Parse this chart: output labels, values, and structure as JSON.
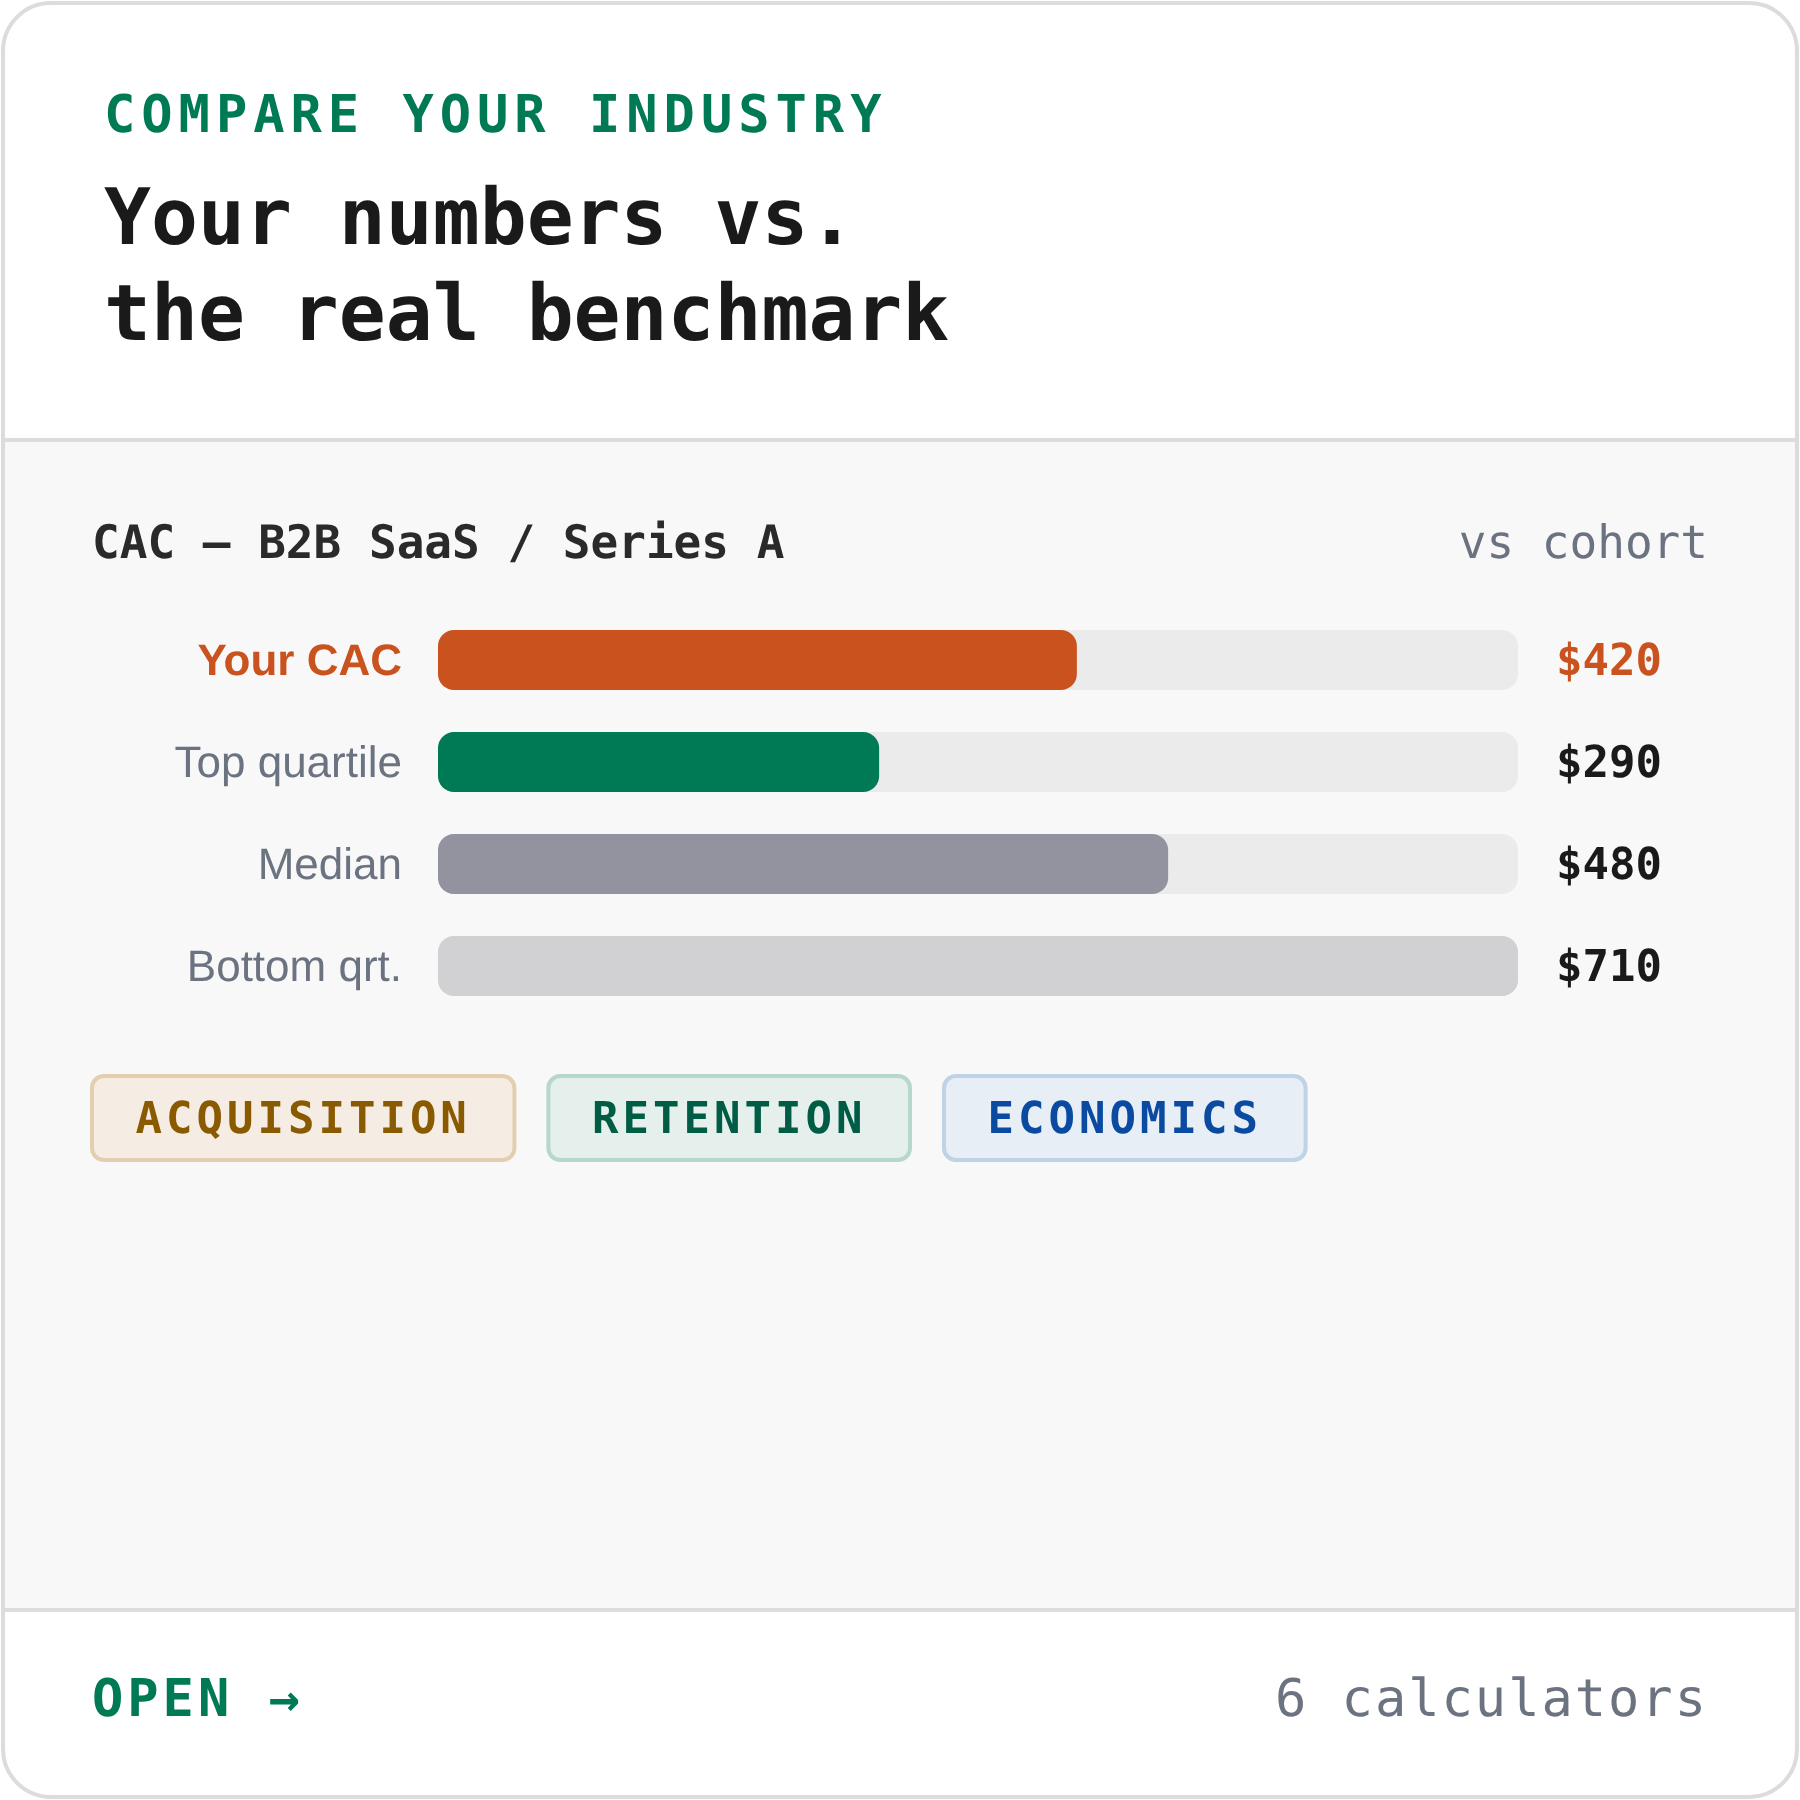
{
  "chart_data": {
    "type": "bar",
    "orientation": "horizontal",
    "title": "Your numbers vs. the real benchmark",
    "subtitle": "COMPARE YOUR INDUSTRY",
    "ylabel": "CAC — B2B SaaS / Series A",
    "categories": [
      "Your CAC",
      "Top quartile",
      "Median",
      "Bottom qrt."
    ],
    "values": [
      420,
      290,
      480,
      710
    ],
    "colors": [
      "#c9521f",
      "#007a55",
      "#93929f",
      "#d1d1d3"
    ],
    "data_labels": true,
    "value_labels": [
      "$420",
      "$290",
      "$480",
      "$710"
    ],
    "annotations": [
      "vs cohort",
      "ACQUISITION",
      "RETENTION",
      "ECONOMICS",
      "OPEN →",
      "6 calculators"
    ]
  }
}
